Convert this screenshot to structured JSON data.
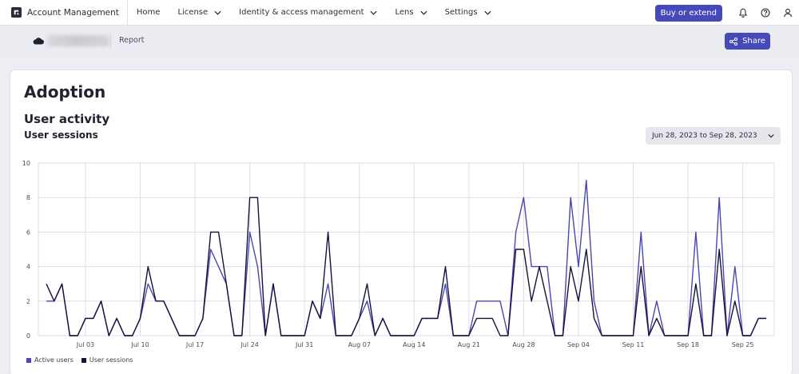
{
  "topbar": {
    "app_name": "Account Management",
    "nav": [
      {
        "label": "Home",
        "has_menu": false
      },
      {
        "label": "License",
        "has_menu": true
      },
      {
        "label": "Identity & access management",
        "has_menu": true
      },
      {
        "label": "Lens",
        "has_menu": true
      },
      {
        "label": "Settings",
        "has_menu": true
      }
    ],
    "buy_label": "Buy or extend",
    "icons": [
      "bell-icon",
      "help-icon",
      "user-icon"
    ]
  },
  "subbar": {
    "report_label": "Report",
    "share_label": "Share"
  },
  "page": {
    "title": "Adoption",
    "section_title": "User activity",
    "chart_title": "User sessions",
    "date_range": "Jun 28, 2023 to Sep 28, 2023"
  },
  "colors": {
    "accent": "#4649b8",
    "active_users": "#4a46b3",
    "user_sessions": "#15123b",
    "grid": "#dcdfe8"
  },
  "chart_data": {
    "type": "line",
    "x_start": "2023-06-28",
    "x": [
      "2023-06-28",
      "2023-06-29",
      "2023-06-30",
      "2023-07-01",
      "2023-07-02",
      "2023-07-03",
      "2023-07-04",
      "2023-07-05",
      "2023-07-06",
      "2023-07-07",
      "2023-07-08",
      "2023-07-09",
      "2023-07-10",
      "2023-07-11",
      "2023-07-12",
      "2023-07-13",
      "2023-07-14",
      "2023-07-15",
      "2023-07-16",
      "2023-07-17",
      "2023-07-18",
      "2023-07-19",
      "2023-07-20",
      "2023-07-21",
      "2023-07-22",
      "2023-07-23",
      "2023-07-24",
      "2023-07-25",
      "2023-07-26",
      "2023-07-27",
      "2023-07-28",
      "2023-07-29",
      "2023-07-30",
      "2023-07-31",
      "2023-08-01",
      "2023-08-02",
      "2023-08-03",
      "2023-08-04",
      "2023-08-05",
      "2023-08-06",
      "2023-08-07",
      "2023-08-08",
      "2023-08-09",
      "2023-08-10",
      "2023-08-11",
      "2023-08-12",
      "2023-08-13",
      "2023-08-14",
      "2023-08-15",
      "2023-08-16",
      "2023-08-17",
      "2023-08-18",
      "2023-08-19",
      "2023-08-20",
      "2023-08-21",
      "2023-08-22",
      "2023-08-23",
      "2023-08-24",
      "2023-08-25",
      "2023-08-26",
      "2023-08-27",
      "2023-08-28",
      "2023-08-29",
      "2023-08-30",
      "2023-08-31",
      "2023-09-01",
      "2023-09-02",
      "2023-09-03",
      "2023-09-04",
      "2023-09-05",
      "2023-09-06",
      "2023-09-07",
      "2023-09-08",
      "2023-09-09",
      "2023-09-10",
      "2023-09-11",
      "2023-09-12",
      "2023-09-13",
      "2023-09-14",
      "2023-09-15",
      "2023-09-16",
      "2023-09-17",
      "2023-09-18",
      "2023-09-19",
      "2023-09-20",
      "2023-09-21",
      "2023-09-22",
      "2023-09-23",
      "2023-09-24",
      "2023-09-25",
      "2023-09-26",
      "2023-09-27",
      "2023-09-28"
    ],
    "series": [
      {
        "name": "Active users",
        "values": [
          2,
          2,
          3,
          0,
          0,
          1,
          1,
          2,
          0,
          1,
          0,
          0,
          1,
          3,
          2,
          2,
          1,
          0,
          0,
          0,
          1,
          5,
          4,
          3,
          0,
          0,
          6,
          4,
          0,
          3,
          0,
          0,
          0,
          0,
          2,
          1,
          3,
          0,
          0,
          0,
          1,
          2,
          0,
          1,
          0,
          0,
          0,
          0,
          1,
          1,
          1,
          3,
          0,
          0,
          0,
          2,
          2,
          2,
          2,
          0,
          6,
          8,
          4,
          4,
          4,
          0,
          0,
          8,
          4,
          9,
          2,
          0,
          0,
          0,
          0,
          0,
          6,
          0,
          2,
          0,
          0,
          0,
          0,
          6,
          0,
          0,
          8,
          0,
          4,
          0,
          0,
          1,
          1
        ]
      },
      {
        "name": "User sessions",
        "values": [
          3,
          2,
          3,
          0,
          0,
          1,
          1,
          2,
          0,
          1,
          0,
          0,
          1,
          4,
          2,
          2,
          1,
          0,
          0,
          0,
          1,
          6,
          6,
          3,
          0,
          0,
          8,
          8,
          0,
          3,
          0,
          0,
          0,
          0,
          2,
          1,
          6,
          0,
          0,
          0,
          1,
          3,
          0,
          1,
          0,
          0,
          0,
          0,
          1,
          1,
          1,
          4,
          0,
          0,
          0,
          1,
          1,
          1,
          0,
          0,
          5,
          5,
          2,
          4,
          2,
          0,
          0,
          4,
          2,
          5,
          1,
          0,
          0,
          0,
          0,
          0,
          4,
          0,
          1,
          0,
          0,
          0,
          0,
          3,
          0,
          0,
          5,
          0,
          2,
          0,
          0,
          1,
          1
        ]
      }
    ],
    "x_tick_labels": [
      "Jul 03",
      "Jul 10",
      "Jul 17",
      "Jul 24",
      "Jul 31",
      "Aug 07",
      "Aug 14",
      "Aug 21",
      "Aug 28",
      "Sep 04",
      "Sep 11",
      "Sep 18",
      "Sep 25"
    ],
    "ylim": [
      0,
      10
    ],
    "y_ticks": [
      0,
      2,
      4,
      6,
      8,
      10
    ],
    "grid": true,
    "legend_position": "bottom-left"
  }
}
